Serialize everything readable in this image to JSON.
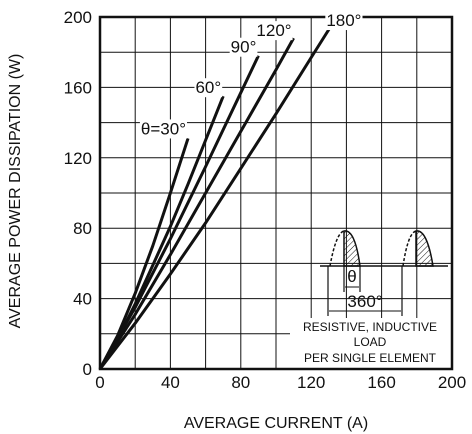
{
  "chart_data": {
    "type": "line",
    "xlabel": "AVERAGE CURRENT (A)",
    "ylabel": "AVERAGE POWER DISSIPATION (W)",
    "xlim": [
      0,
      200
    ],
    "ylim": [
      0,
      200
    ],
    "xticks": [
      "0",
      "40",
      "80",
      "120",
      "160",
      "200"
    ],
    "yticks": [
      "0",
      "40",
      "80",
      "120",
      "160",
      "200"
    ],
    "grid": true,
    "series": [
      {
        "name": "θ=30°",
        "x": [
          0,
          10,
          20,
          30,
          40,
          50
        ],
        "y": [
          0,
          19,
          43,
          70,
          100,
          131
        ]
      },
      {
        "name": "60°",
        "x": [
          0,
          10,
          20,
          30,
          40,
          50,
          60,
          70
        ],
        "y": [
          0,
          17,
          37,
          59,
          81,
          105,
          130,
          155
        ]
      },
      {
        "name": "90°",
        "x": [
          0,
          20,
          40,
          60,
          80,
          90
        ],
        "y": [
          0,
          35,
          74,
          115,
          157,
          178
        ]
      },
      {
        "name": "120°",
        "x": [
          0,
          20,
          40,
          60,
          80,
          100,
          110
        ],
        "y": [
          0,
          31,
          65,
          100,
          135,
          170,
          188
        ]
      },
      {
        "name": "180°",
        "x": [
          0,
          20,
          40,
          60,
          80,
          100,
          120,
          132
        ],
        "y": [
          0,
          26,
          54,
          83,
          114,
          145,
          177,
          196
        ]
      }
    ],
    "inset": {
      "theta_label": "θ",
      "period_label": "360°",
      "line1": "RESISTIVE, INDUCTIVE",
      "line2": "LOAD",
      "line3": "PER SINGLE ELEMENT"
    }
  }
}
